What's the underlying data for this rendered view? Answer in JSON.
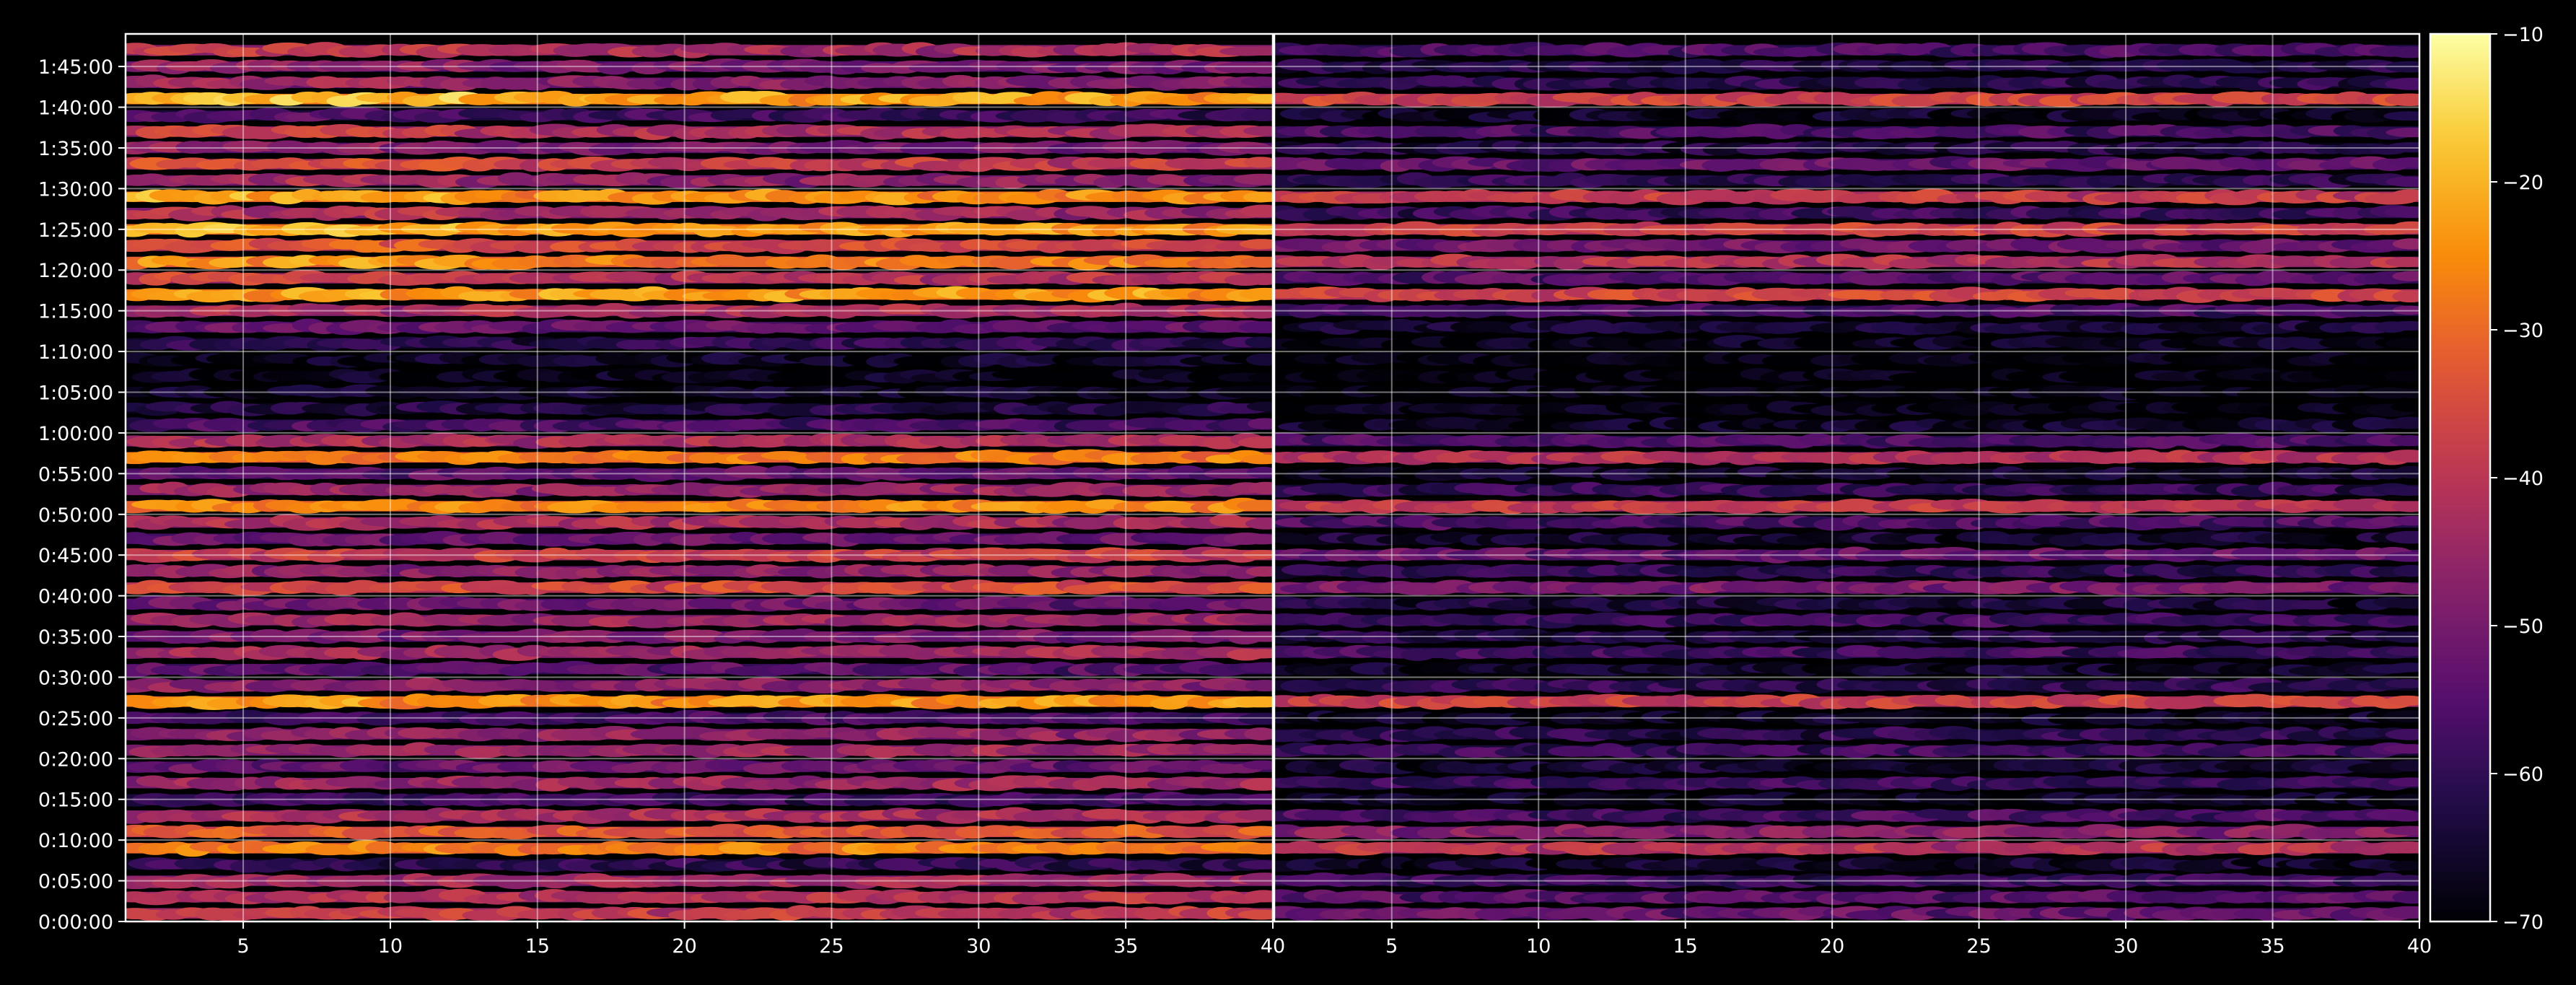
{
  "chart_data": {
    "type": "heatmap",
    "panels": [
      {
        "name": "",
        "x_range": [
          1,
          40
        ],
        "xticks": [
          5,
          10,
          15,
          20,
          25,
          30,
          35,
          40
        ],
        "xtick_labels": [
          "5",
          "10",
          "15",
          "20",
          "25",
          "30",
          "35",
          "40"
        ],
        "gain_db": 0
      },
      {
        "name": "",
        "x_range": [
          1,
          40
        ],
        "xticks": [
          5,
          10,
          15,
          20,
          25,
          30,
          35,
          40
        ],
        "xtick_labels": [
          "5",
          "10",
          "15",
          "20",
          "25",
          "30",
          "35",
          "40"
        ],
        "gain_db": -14
      }
    ],
    "y_range_seconds": [
      0,
      6540
    ],
    "yticks_seconds": [
      0,
      300,
      600,
      900,
      1200,
      1500,
      1800,
      2100,
      2400,
      2700,
      3000,
      3300,
      3600,
      3900,
      4200,
      4500,
      4800,
      5100,
      5400,
      5700,
      6000,
      6300
    ],
    "ytick_labels": [
      "0:00:00",
      "0:05:00",
      "0:10:00",
      "0:15:00",
      "0:20:00",
      "0:25:00",
      "0:30:00",
      "0:35:00",
      "0:40:00",
      "0:45:00",
      "0:50:00",
      "0:55:00",
      "1:00:00",
      "1:05:00",
      "1:10:00",
      "1:15:00",
      "1:20:00",
      "1:25:00",
      "1:30:00",
      "1:35:00",
      "1:40:00",
      "1:45:00"
    ],
    "colorbar": {
      "cmap": "inferno",
      "range": [
        -70,
        -10
      ],
      "ticks": [
        -70,
        -60,
        -50,
        -40,
        -30,
        -20,
        -10
      ],
      "tick_labels": [
        "−70",
        "−60",
        "−50",
        "−40",
        "−30",
        "−20",
        "−10"
      ]
    },
    "grid": true,
    "row_height_seconds": 120,
    "rows_start_seconds": [
      0,
      120,
      240,
      360,
      480,
      600,
      720,
      840,
      960,
      1080,
      1200,
      1320,
      1440,
      1560,
      1680,
      1800,
      1920,
      2040,
      2160,
      2280,
      2400,
      2520,
      2640,
      2760,
      2880,
      3000,
      3120,
      3240,
      3360,
      3480,
      3600,
      3720,
      3840,
      3960,
      4080,
      4200,
      4320,
      4440,
      4560,
      4680,
      4800,
      4920,
      5040,
      5160,
      5280,
      5400,
      5520,
      5640,
      5760,
      5880,
      6000,
      6120,
      6240,
      6360
    ],
    "row_levels_db_panel1": [
      -38,
      -40,
      -44,
      -60,
      -26,
      -33,
      -42,
      -58,
      -44,
      -52,
      -44,
      -46,
      -57,
      -23,
      -47,
      -54,
      -43,
      -49,
      -44,
      -51,
      -35,
      -46,
      -38,
      -52,
      -42,
      -25,
      -45,
      -53,
      -27,
      -42,
      -56,
      -62,
      -66,
      -67,
      -66,
      -60,
      -52,
      -42,
      -22,
      -40,
      -27,
      -36,
      -23,
      -44,
      -24,
      -46,
      -38,
      -50,
      -42,
      -58,
      -22,
      -48,
      -50,
      -42
    ],
    "row_levels_db_panel2": [
      -52,
      -54,
      -58,
      -65,
      -40,
      -47,
      -56,
      -66,
      -58,
      -64,
      -58,
      -60,
      -66,
      -37,
      -60,
      -65,
      -57,
      -62,
      -58,
      -63,
      -49,
      -60,
      -52,
      -64,
      -56,
      -39,
      -59,
      -65,
      -41,
      -56,
      -66,
      -68,
      -69,
      -69,
      -69,
      -67,
      -64,
      -56,
      -36,
      -54,
      -41,
      -50,
      -37,
      -58,
      -38,
      -60,
      -52,
      -62,
      -56,
      -66,
      -36,
      -60,
      -62,
      -56
    ]
  }
}
